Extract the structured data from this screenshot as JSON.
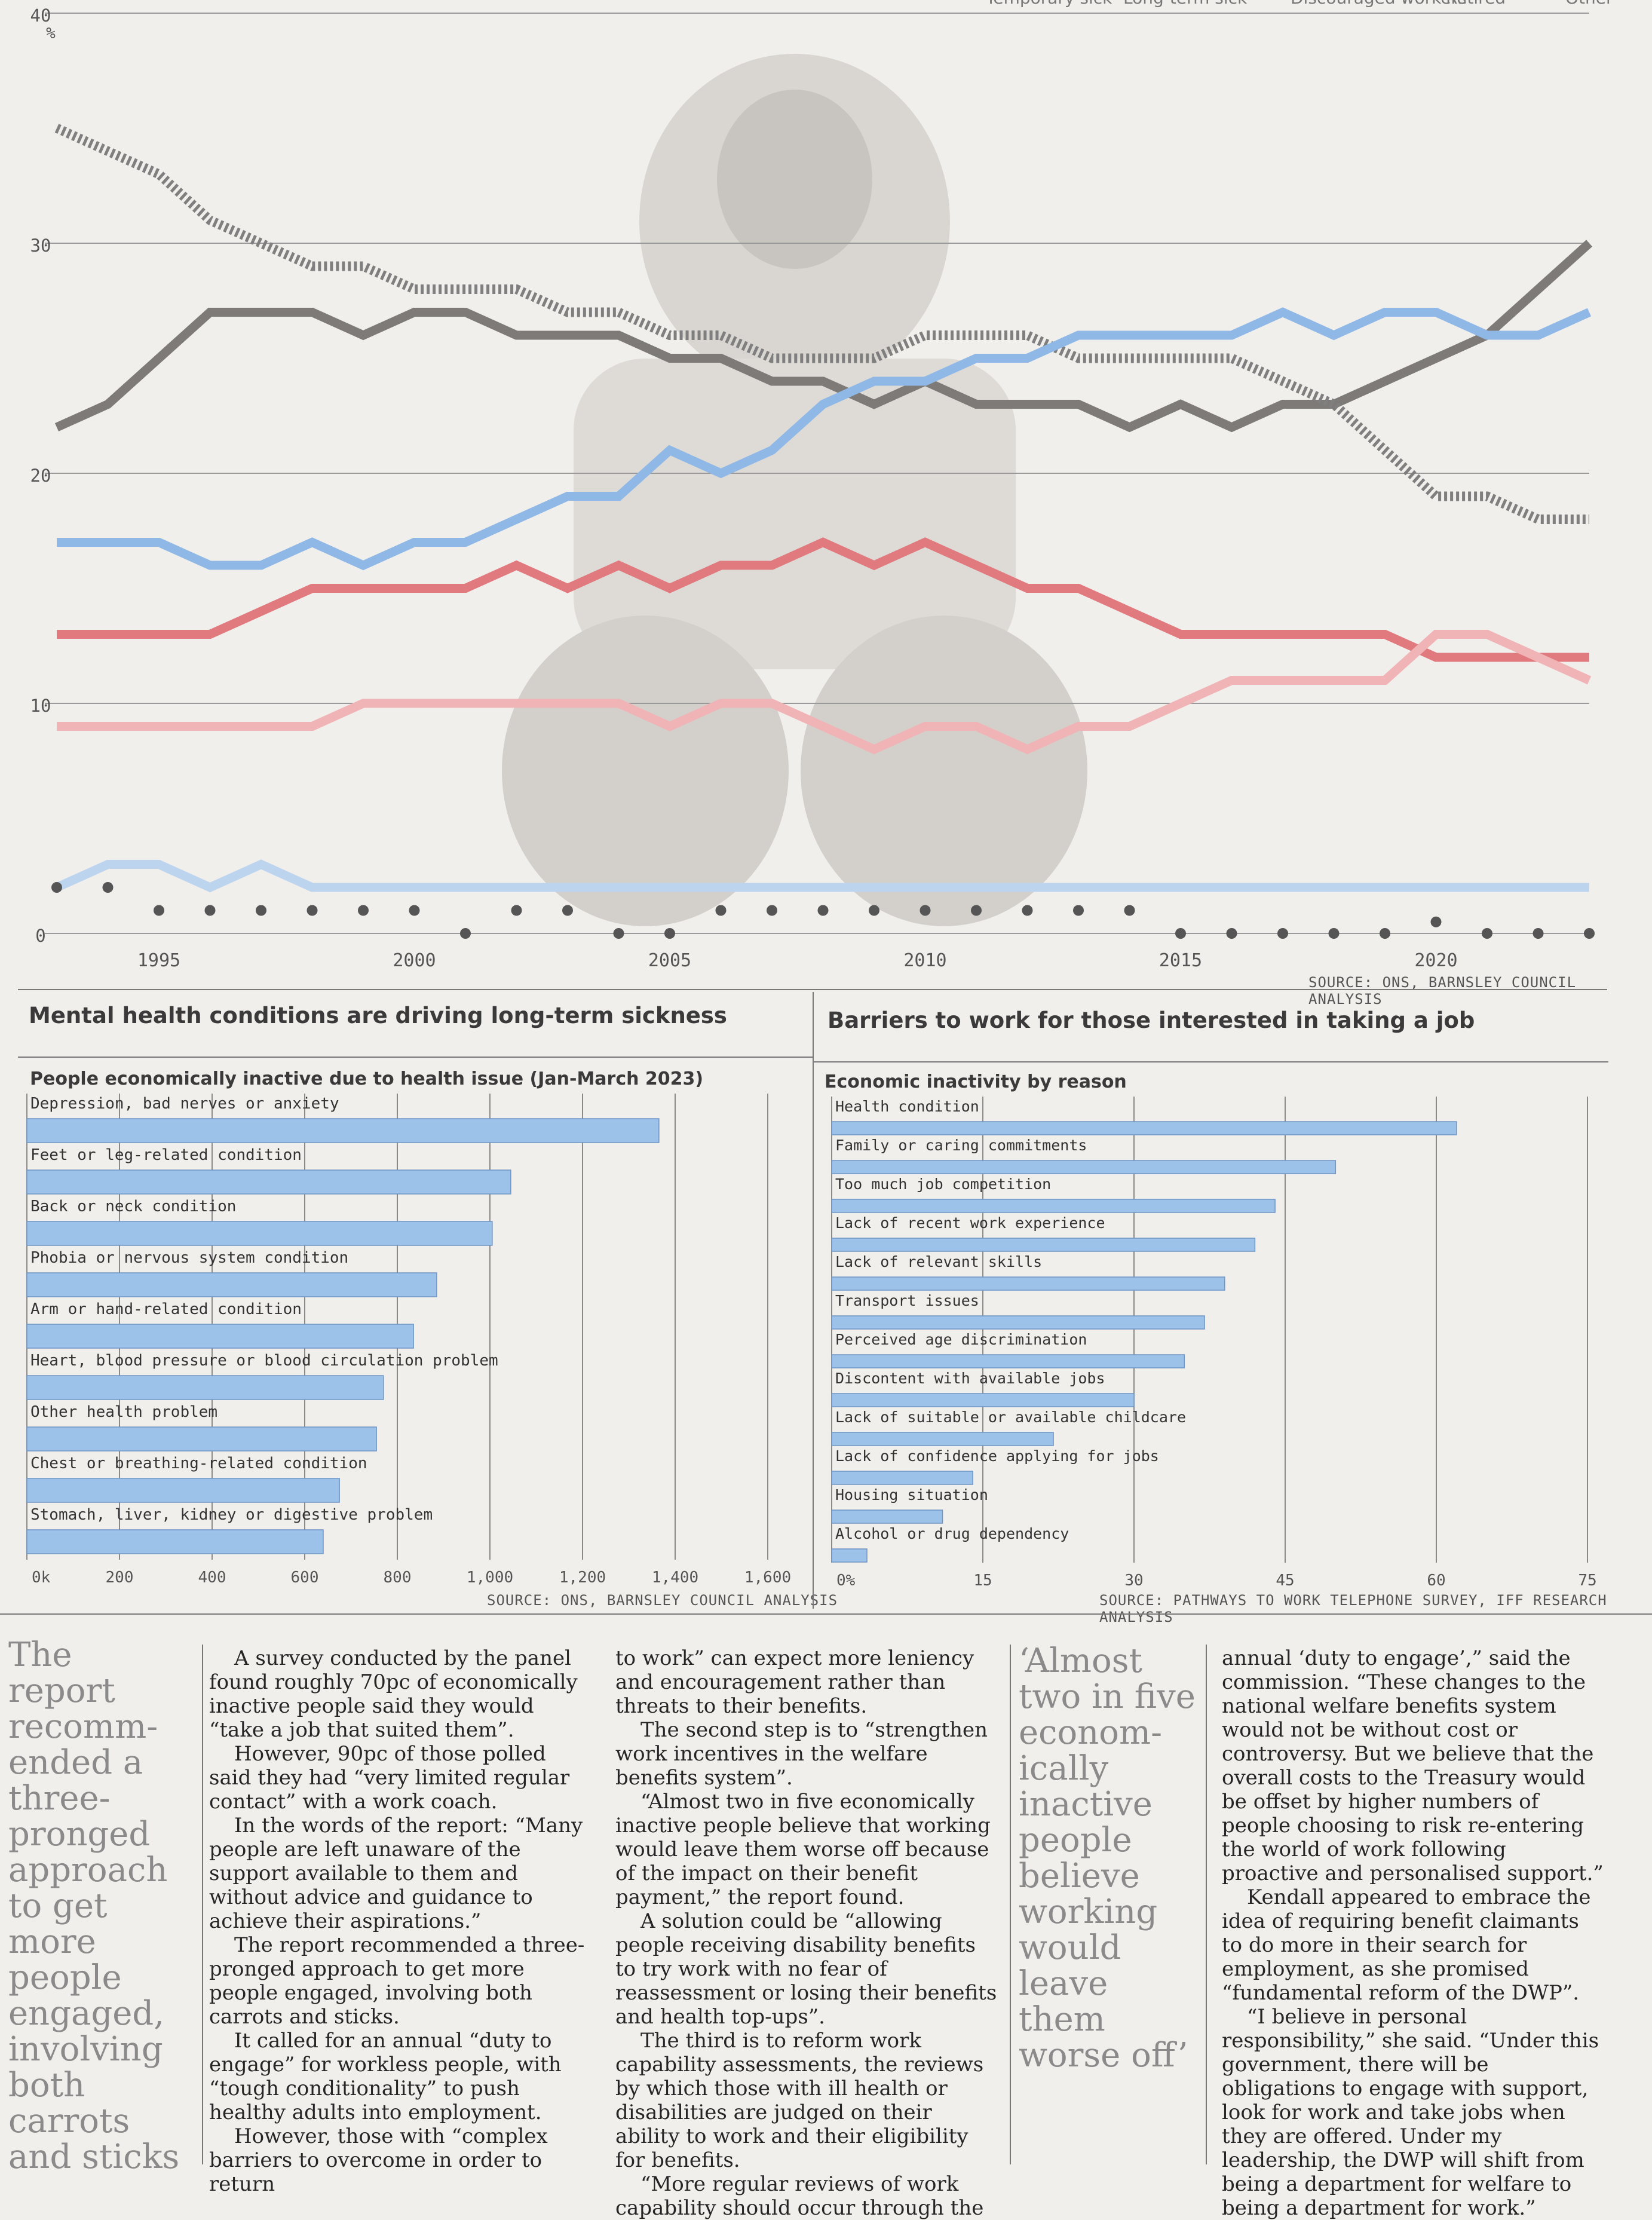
{
  "top_chart": {
    "unit": "%",
    "legend_fragments": [
      "Temporary sick",
      "Long-term sick",
      "Discouraged workers",
      "Retired",
      "Other"
    ],
    "source": "SOURCE: ONS, BARNSLEY COUNCIL ANALYSIS"
  },
  "left_panel": {
    "title": "Mental health conditions are driving long-term sickness",
    "subtitle": "People economically inactive due to health issue (Jan-March 2023)",
    "source": "SOURCE: ONS, BARNSLEY COUNCIL ANALYSIS"
  },
  "right_panel": {
    "title": "Barriers to work for those interested in taking a job",
    "subtitle": "Economic inactivity by reason",
    "source": "SOURCE: PATHWAYS TO WORK TELEPHONE SURVEY, IFF RESEARCH ANALYSIS"
  },
  "chart_data": [
    {
      "type": "line",
      "title": "",
      "ylabel": "%",
      "ylim": [
        0,
        40
      ],
      "yticks": [
        0,
        10,
        20,
        30,
        40
      ],
      "xticks": [
        1995,
        2000,
        2005,
        2010,
        2015,
        2020
      ],
      "xlim": [
        1993,
        2023
      ],
      "grid": true,
      "x": [
        1993,
        1994,
        1995,
        1996,
        1997,
        1998,
        1999,
        2000,
        2001,
        2002,
        2003,
        2004,
        2005,
        2006,
        2007,
        2008,
        2009,
        2010,
        2011,
        2012,
        2013,
        2014,
        2015,
        2016,
        2017,
        2018,
        2019,
        2020,
        2021,
        2022,
        2023
      ],
      "series": [
        {
          "color": "#7d7a78",
          "style": "solid",
          "values": [
            22,
            23,
            25,
            27,
            27,
            27,
            26,
            27,
            27,
            26,
            26,
            26,
            25,
            25,
            24,
            24,
            23,
            24,
            23,
            23,
            23,
            22,
            23,
            22,
            23,
            23,
            24,
            25,
            26,
            28,
            30
          ]
        },
        {
          "color": "#7f7f7f",
          "style": "dash",
          "values": [
            35,
            34,
            33,
            31,
            30,
            29,
            29,
            28,
            28,
            28,
            27,
            27,
            26,
            26,
            25,
            25,
            25,
            26,
            26,
            26,
            25,
            25,
            25,
            25,
            24,
            23,
            21,
            19,
            19,
            18,
            18
          ]
        },
        {
          "color": "#8fb8e6",
          "style": "solid",
          "values": [
            17,
            17,
            17,
            16,
            16,
            17,
            16,
            17,
            17,
            18,
            19,
            19,
            21,
            20,
            21,
            23,
            24,
            24,
            25,
            25,
            26,
            26,
            26,
            26,
            27,
            26,
            27,
            27,
            26,
            26,
            27
          ]
        },
        {
          "color": "#e07a7e",
          "style": "solid",
          "values": [
            13,
            13,
            13,
            13,
            14,
            15,
            15,
            15,
            15,
            16,
            15,
            16,
            15,
            16,
            16,
            17,
            16,
            17,
            16,
            15,
            15,
            14,
            13,
            13,
            13,
            13,
            13,
            12,
            12,
            12,
            12
          ]
        },
        {
          "color": "#f0b4b6",
          "style": "solid",
          "values": [
            9,
            9,
            9,
            9,
            9,
            9,
            10,
            10,
            10,
            10,
            10,
            10,
            9,
            10,
            10,
            9,
            8,
            9,
            9,
            8,
            9,
            9,
            10,
            11,
            11,
            11,
            11,
            13,
            13,
            12,
            11
          ]
        },
        {
          "color": "#bdd4ef",
          "style": "solid",
          "values": [
            2,
            3,
            3,
            2,
            3,
            2,
            2,
            2,
            2,
            2,
            2,
            2,
            2,
            2,
            2,
            2,
            2,
            2,
            2,
            2,
            2,
            2,
            2,
            2,
            2,
            2,
            2,
            2,
            2,
            2,
            2
          ]
        },
        {
          "color": "#555555",
          "style": "dot",
          "values": [
            2,
            2,
            1,
            1,
            1,
            1,
            1,
            1,
            0,
            1,
            1,
            0,
            0,
            1,
            1,
            1,
            1,
            1,
            1,
            1,
            1,
            1,
            0,
            0,
            0,
            0,
            0,
            0.5,
            0,
            0,
            0
          ]
        }
      ]
    },
    {
      "type": "bar",
      "orientation": "horizontal",
      "title": "People economically inactive due to health issue (Jan-March 2023)",
      "categories": [
        "Depression, bad nerves or anxiety",
        "Feet or leg-related condition",
        "Back or neck condition",
        "Phobia or nervous system condition",
        "Arm or hand-related condition",
        "Heart, blood pressure or blood circulation problem",
        "Other health problem",
        "Chest or breathing-related condition",
        "Stomach, liver, kidney or digestive problem"
      ],
      "values": [
        1365,
        1045,
        1005,
        885,
        835,
        770,
        755,
        675,
        640
      ],
      "xticks": [
        "0k",
        "200",
        "400",
        "600",
        "800",
        "1,000",
        "1,200",
        "1,400",
        "1,600"
      ],
      "xlim": [
        0,
        1600
      ],
      "color": "#9cc2ea"
    },
    {
      "type": "bar",
      "orientation": "horizontal",
      "title": "Economic inactivity by reason",
      "categories": [
        "Health condition",
        "Family or caring commitments",
        "Too much job competition",
        "Lack of recent work experience",
        "Lack of relevant skills",
        "Transport issues",
        "Perceived age discrimination",
        "Discontent with available jobs",
        "Lack of suitable or available childcare",
        "Lack of confidence applying for jobs",
        "Housing situation",
        "Alcohol or drug dependency"
      ],
      "values": [
        62,
        50,
        44,
        42,
        39,
        37,
        35,
        30,
        22,
        14,
        11,
        3.5
      ],
      "xticks": [
        "0%",
        "15",
        "30",
        "45",
        "60",
        "75"
      ],
      "xlim": [
        0,
        75
      ],
      "color": "#9cc2ea"
    }
  ],
  "article": {
    "pull_quote_left": "The report recomm-ended a three-pronged approach to get more people engaged, involving both carrots and sticks",
    "col1": [
      "A survey conducted by the panel found roughly 70pc of economically inactive people said they would “take a job that suited them”.",
      "However, 90pc of those polled said they had “very limited regular contact” with a work coach.",
      "In the words of the report: “Many people are left unaware of the support available to them and without advice and guidance to achieve their aspirations.”",
      "The report recommended a three-pronged approach to get more people engaged, involving both carrots and sticks.",
      "It called for an annual “duty to engage” for workless people, with “tough conditionality” to push healthy adults into employment.",
      "However, those with “complex barriers to overcome in order to return"
    ],
    "col2": [
      "to work” can expect more leniency and encouragement rather than threats to their benefits.",
      "The second step is to “strengthen work incentives in the welfare benefits system”.",
      "“Almost two in five economically inactive people believe that working would leave them worse off because of the impact on their benefit payment,” the report found.",
      "A solution could be “allowing people receiving disability benefits to try work with no fear of reassessment or losing their benefits and health top-ups”.",
      "The third is to reform work capability assessments, the reviews by which those with ill health or disabilities are judged on their ability to work and their eligibility for benefits.",
      "“More regular reviews of work capability should occur through the"
    ],
    "pull_quote_right": "‘Almost two in five econom-ically inactive people believe working would leave them worse off’",
    "col4": [
      "annual ‘duty to engage’,” said the commission. “These changes to the national welfare benefits system would not be without cost or controversy. But we believe that the overall costs to the Treasury would be offset by higher numbers of people choosing to risk re-entering the world of work following proactive and personalised support.”",
      "Kendall appeared to embrace the idea of requiring benefit claimants to do more in their search for employment, as she promised “fundamental reform of the DWP”.",
      "“I believe in personal responsibility,” she said. “Under this government, there will be obligations to engage with support, look for work and take jobs when they are offered. Under my leadership, the DWP will shift from being a department for welfare to being a department for work.”"
    ]
  }
}
